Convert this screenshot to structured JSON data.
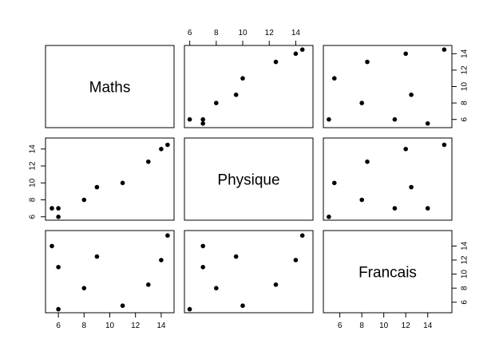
{
  "chart_data": {
    "type": "scatter",
    "title": "",
    "grid": false,
    "variables": [
      "Maths",
      "Physique",
      "Francais"
    ],
    "observations": {
      "Maths": [
        6,
        8,
        6,
        14.5,
        14,
        11,
        5.5,
        13,
        9
      ],
      "Physique": [
        6,
        8,
        7,
        14.5,
        14,
        10,
        7,
        12.5,
        9.5
      ],
      "Francais": [
        5,
        8,
        11,
        15.5,
        12,
        5.5,
        14,
        8.5,
        12.5
      ]
    },
    "axes": {
      "Maths": {
        "lim": [
          5,
          15
        ],
        "ticks": [
          6,
          8,
          10,
          12,
          14
        ]
      },
      "Physique": {
        "lim": [
          5.6,
          15.3
        ],
        "ticks": [
          6,
          8,
          10,
          12,
          14
        ]
      },
      "Francais": {
        "lim": [
          4.5,
          16.2
        ],
        "ticks": [
          6,
          8,
          10,
          12,
          14
        ]
      }
    }
  }
}
